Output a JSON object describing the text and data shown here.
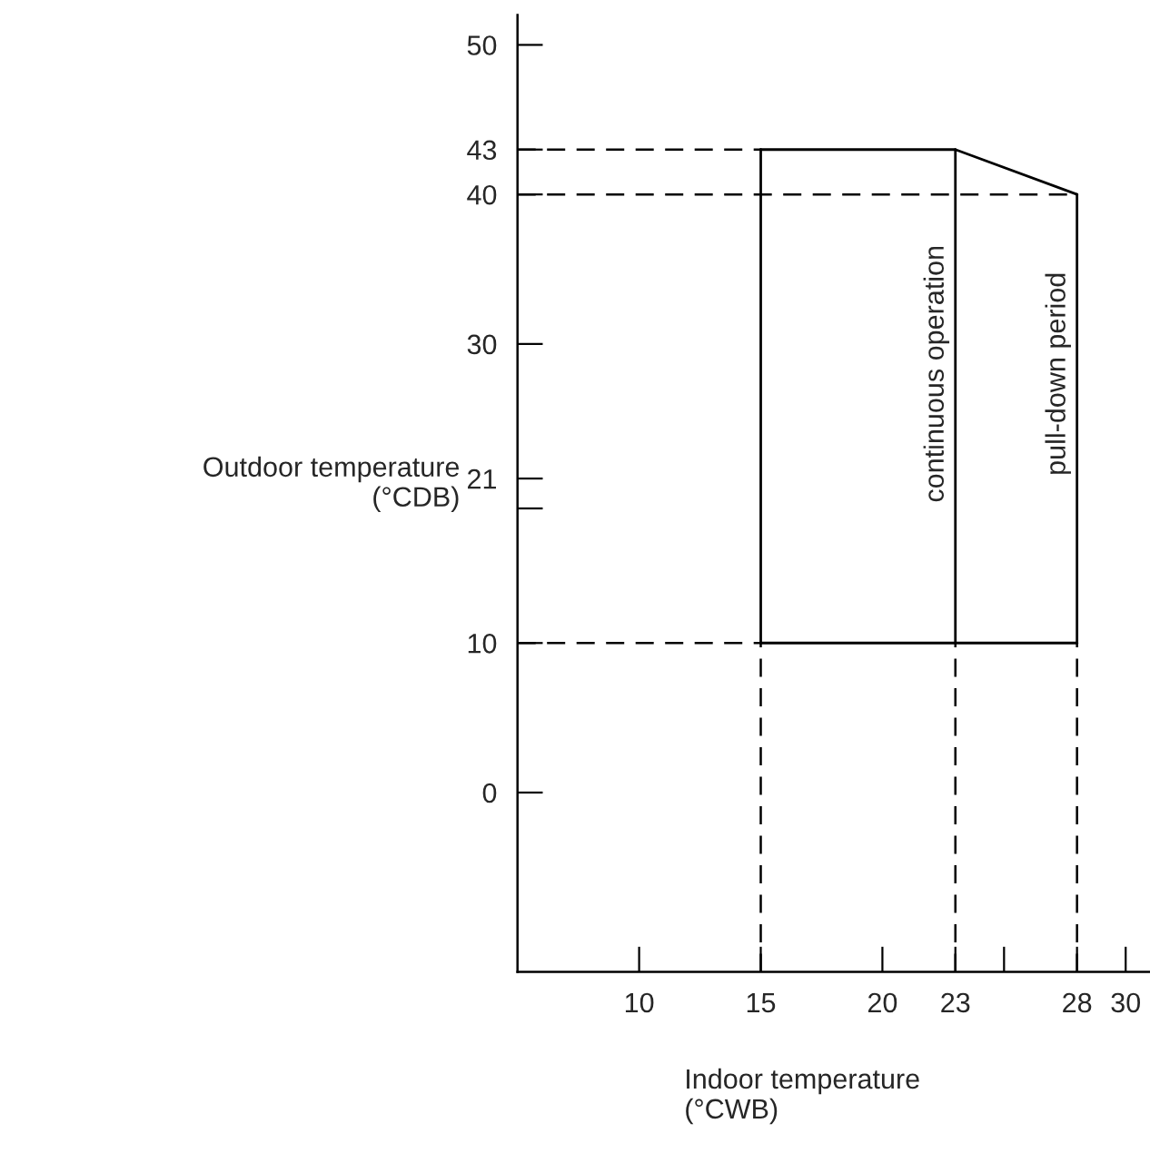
{
  "chart_data": {
    "type": "line",
    "xlabel": "Indoor temperature\n(°CWB)",
    "ylabel": "Outdoor temperature\n(°CDB)",
    "series": [
      {
        "color": "#000000",
        "x": [
          15,
          23,
          28
        ],
        "values": [
          43,
          43,
          40
        ]
      },
      {
        "color": "#000000",
        "x": [
          15,
          28
        ],
        "values": [
          10,
          10
        ]
      },
      {
        "color": "#000000",
        "x": [
          15,
          15
        ],
        "values": [
          10,
          43
        ]
      },
      {
        "color": "#000000",
        "x": [
          23,
          23
        ],
        "values": [
          10,
          43
        ]
      },
      {
        "color": "#000000",
        "x": [
          28,
          28
        ],
        "values": [
          10,
          40
        ]
      }
    ],
    "xlim": [
      5,
      31
    ],
    "xticks": [
      10,
      15,
      20,
      23,
      {
        "value": 25,
        "label": null
      },
      28,
      30
    ],
    "ylim": [
      -12,
      52
    ],
    "yticks": [
      0,
      10,
      {
        "value": 19,
        "label": null
      },
      21,
      30,
      40,
      43,
      50
    ],
    "ref_lines": [
      {
        "axis": "y",
        "value": 43,
        "line_style": "dashed"
      },
      {
        "axis": "y",
        "value": 40,
        "line_style": "dashed"
      },
      {
        "axis": "y",
        "value": 10,
        "line_style": "dashed"
      },
      {
        "axis": "x",
        "value": 15,
        "line_style": "dashed"
      },
      {
        "axis": "x",
        "value": 23,
        "line_style": "dashed"
      },
      {
        "axis": "x",
        "value": 28,
        "line_style": "dashed"
      }
    ],
    "annotations": [
      "continuous operation",
      "pull-down period"
    ],
    "grid": false,
    "legend": false,
    "marker": "none",
    "line_style": "solid"
  }
}
